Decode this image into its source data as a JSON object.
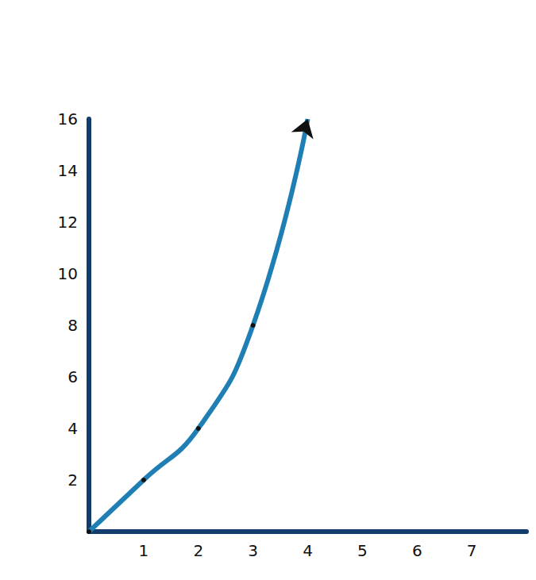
{
  "chart_data": {
    "type": "line",
    "x": [
      0,
      1,
      2,
      3,
      4
    ],
    "values": [
      0,
      2,
      4,
      8,
      16
    ],
    "color": "#1f7fb5",
    "marker": "circle",
    "xlim": [
      0,
      8
    ],
    "ylim": [
      0,
      16
    ],
    "xticks": [
      1,
      2,
      3,
      4,
      5,
      6,
      7
    ],
    "yticks": [
      2,
      4,
      6,
      8,
      10,
      12,
      14,
      16
    ],
    "grid": false
  }
}
